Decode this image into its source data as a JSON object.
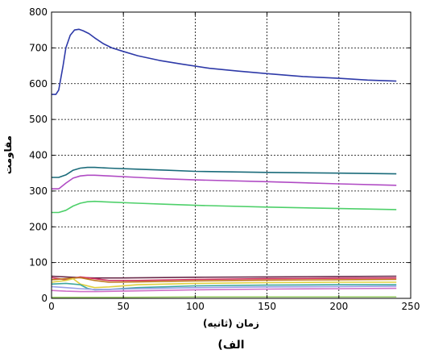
{
  "chart_data": {
    "type": "line",
    "xlabel": "زمان (ثانیه)",
    "ylabel": "مقاومت",
    "caption": "الف)",
    "xlim": [
      0,
      250
    ],
    "ylim": [
      0,
      800
    ],
    "xticks": [
      0,
      50,
      100,
      150,
      200,
      250
    ],
    "yticks": [
      0,
      100,
      200,
      300,
      400,
      500,
      600,
      700,
      800
    ],
    "grid": true,
    "series": [
      {
        "color": "#2e3aa8",
        "x": [
          0,
          3,
          5,
          8,
          10,
          13,
          16,
          19,
          22,
          26,
          30,
          36,
          42,
          50,
          60,
          75,
          90,
          110,
          130,
          150,
          175,
          200,
          220,
          240
        ],
        "y": [
          570,
          570,
          582,
          650,
          700,
          735,
          750,
          752,
          748,
          740,
          728,
          712,
          700,
          690,
          678,
          665,
          655,
          643,
          635,
          628,
          620,
          615,
          610,
          607
        ]
      },
      {
        "color": "#1a6b7a",
        "x": [
          0,
          5,
          10,
          15,
          20,
          25,
          30,
          40,
          60,
          80,
          100,
          150,
          200,
          240
        ],
        "y": [
          338,
          338,
          345,
          358,
          364,
          366,
          366,
          364,
          361,
          358,
          355,
          352,
          350,
          348
        ]
      },
      {
        "color": "#b04bc4",
        "x": [
          0,
          5,
          10,
          15,
          20,
          25,
          30,
          40,
          60,
          80,
          100,
          150,
          200,
          240
        ],
        "y": [
          306,
          306,
          322,
          336,
          342,
          344,
          344,
          342,
          338,
          334,
          331,
          326,
          320,
          316
        ]
      },
      {
        "color": "#4ed06a",
        "x": [
          0,
          5,
          10,
          15,
          20,
          25,
          30,
          40,
          60,
          80,
          100,
          150,
          200,
          240
        ],
        "y": [
          240,
          240,
          246,
          258,
          266,
          270,
          271,
          269,
          266,
          263,
          260,
          255,
          251,
          248
        ]
      },
      {
        "color": "#6a2a4a",
        "x": [
          0,
          10,
          20,
          30,
          50,
          100,
          150,
          200,
          240
        ],
        "y": [
          62,
          60,
          58,
          57,
          57,
          59,
          60,
          61,
          62
        ]
      },
      {
        "color": "#d03060",
        "x": [
          0,
          10,
          20,
          30,
          40,
          60,
          100,
          150,
          200,
          240
        ],
        "y": [
          58,
          52,
          60,
          55,
          50,
          50,
          53,
          55,
          56,
          57
        ]
      },
      {
        "color": "#c07a20",
        "x": [
          0,
          10,
          20,
          30,
          40,
          60,
          100,
          150,
          200,
          240
        ],
        "y": [
          52,
          55,
          58,
          50,
          45,
          46,
          49,
          51,
          52,
          53
        ]
      },
      {
        "color": "#e0d040",
        "x": [
          0,
          10,
          15,
          20,
          30,
          40,
          60,
          100,
          150,
          200,
          240
        ],
        "y": [
          45,
          50,
          55,
          40,
          30,
          32,
          38,
          42,
          44,
          45,
          45
        ]
      },
      {
        "color": "#40a8a0",
        "x": [
          0,
          10,
          20,
          25,
          30,
          40,
          60,
          100,
          150,
          200,
          240
        ],
        "y": [
          40,
          42,
          38,
          28,
          24,
          25,
          30,
          35,
          37,
          38,
          38
        ]
      },
      {
        "color": "#9aa0e8",
        "x": [
          0,
          10,
          20,
          30,
          40,
          60,
          100,
          150,
          200,
          240
        ],
        "y": [
          33,
          30,
          27,
          25,
          25,
          27,
          30,
          32,
          33,
          34
        ]
      },
      {
        "color": "#d070c8",
        "x": [
          0,
          10,
          20,
          30,
          60,
          100,
          150,
          200,
          240
        ],
        "y": [
          22,
          20,
          19,
          19,
          21,
          24,
          26,
          27,
          28
        ]
      },
      {
        "color": "#a0d070",
        "x": [
          0,
          20,
          50,
          100,
          150,
          200,
          240
        ],
        "y": [
          3,
          3,
          3,
          4,
          4,
          4,
          4
        ]
      }
    ]
  }
}
